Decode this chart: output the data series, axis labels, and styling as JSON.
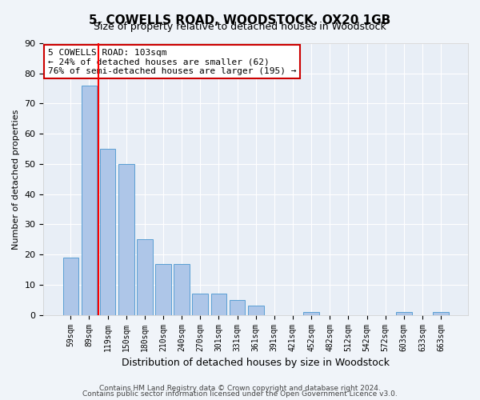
{
  "title": "5, COWELLS ROAD, WOODSTOCK, OX20 1GB",
  "subtitle": "Size of property relative to detached houses in Woodstock",
  "xlabel": "Distribution of detached houses by size in Woodstock",
  "ylabel": "Number of detached properties",
  "categories": [
    "59sqm",
    "89sqm",
    "119sqm",
    "150sqm",
    "180sqm",
    "210sqm",
    "240sqm",
    "270sqm",
    "301sqm",
    "331sqm",
    "361sqm",
    "391sqm",
    "421sqm",
    "452sqm",
    "482sqm",
    "512sqm",
    "542sqm",
    "572sqm",
    "603sqm",
    "633sqm",
    "663sqm"
  ],
  "values": [
    19,
    76,
    55,
    50,
    25,
    17,
    17,
    7,
    7,
    5,
    3,
    0,
    0,
    1,
    0,
    0,
    0,
    0,
    1,
    0,
    1
  ],
  "bar_color": "#aec6e8",
  "bar_edgecolor": "#5a9fd4",
  "red_line_x": 1.5,
  "annotation_line1": "5 COWELLS ROAD: 103sqm",
  "annotation_line2": "← 24% of detached houses are smaller (62)",
  "annotation_line3": "76% of semi-detached houses are larger (195) →",
  "ylim": [
    0,
    90
  ],
  "yticks": [
    0,
    10,
    20,
    30,
    40,
    50,
    60,
    70,
    80,
    90
  ],
  "footer1": "Contains HM Land Registry data © Crown copyright and database right 2024.",
  "footer2": "Contains public sector information licensed under the Open Government Licence v3.0.",
  "fig_bg": "#f0f4f9",
  "ax_bg": "#e8eef6"
}
